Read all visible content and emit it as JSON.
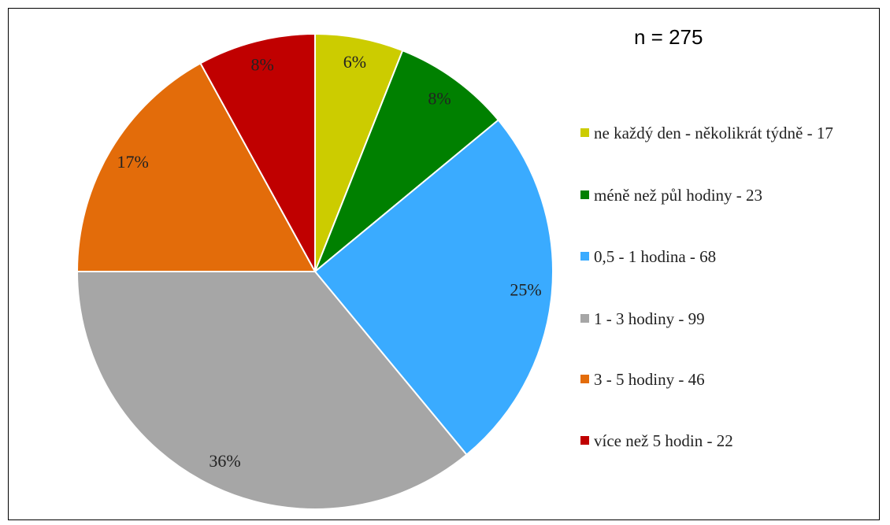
{
  "chart_data": {
    "type": "pie",
    "annotation": "n = 275",
    "categories": [
      "ne každý den - několikrát týdně - 17",
      "méně než půl hodiny - 23",
      "0,5 - 1 hodina - 68",
      "1 - 3 hodiny - 99",
      "3 - 5 hodiny - 46",
      "více než 5 hodin - 22"
    ],
    "values": [
      6,
      8,
      25,
      36,
      17,
      8
    ],
    "value_labels": [
      "6%",
      "8%",
      "25%",
      "36%",
      "17%",
      "8%"
    ],
    "colors": [
      "#cccc00",
      "#008000",
      "#3aabff",
      "#a6a6a6",
      "#e36c0a",
      "#c00000"
    ],
    "legend": "right"
  }
}
